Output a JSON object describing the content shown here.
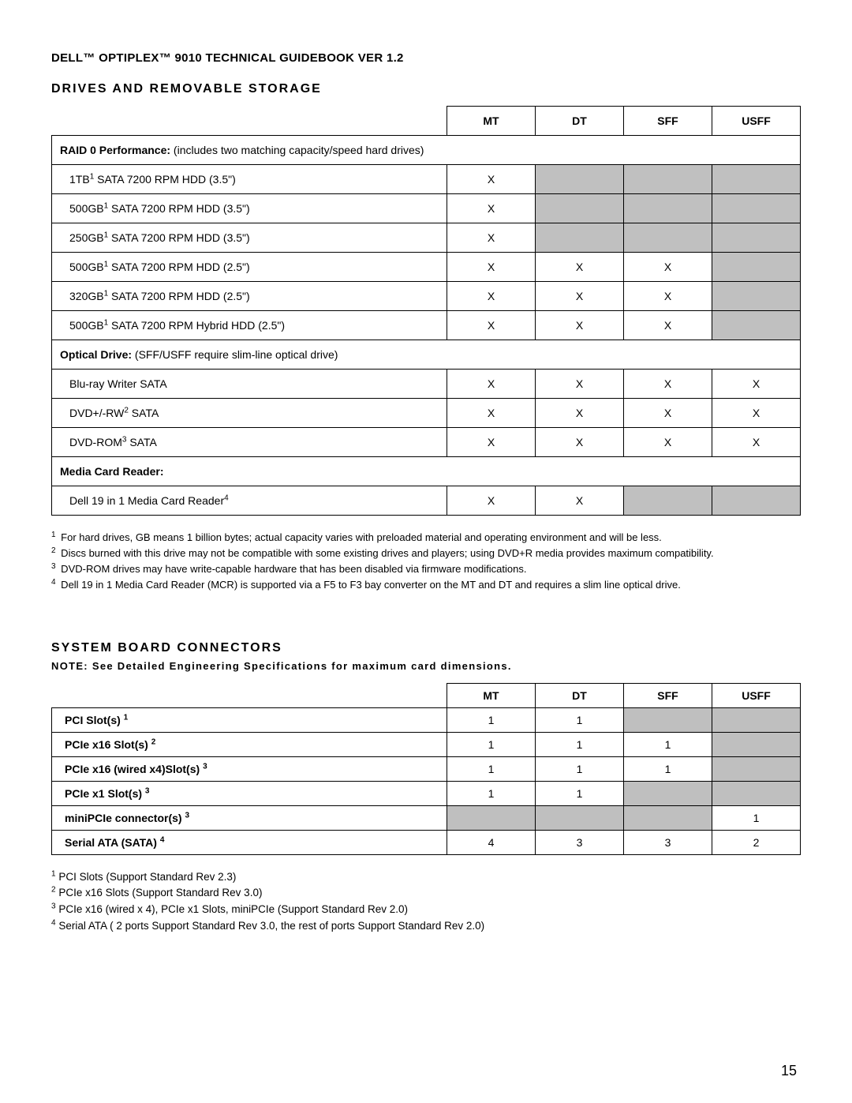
{
  "doc_title": "DELL™ OPTIPLEX™ 9010 TECHNICAL GUIDEBOOK VER 1.2",
  "page_number": "15",
  "section1": {
    "title": "DRIVES AND REMOVABLE STORAGE",
    "columns": [
      "MT",
      "DT",
      "SFF",
      "USFF"
    ],
    "groups": [
      {
        "header_bold": "RAID 0 Performance:",
        "header_rest": "  (includes two matching capacity/speed hard drives)",
        "rows": [
          {
            "label_pre": "1TB",
            "sup": "1",
            "label_post": " SATA 7200 RPM HDD (3.5\")",
            "cells": [
              "X",
              "na",
              "na",
              "na"
            ]
          },
          {
            "label_pre": "500GB",
            "sup": "1",
            "label_post": " SATA 7200 RPM HDD (3.5\")",
            "cells": [
              "X",
              "na",
              "na",
              "na"
            ]
          },
          {
            "label_pre": "250GB",
            "sup": "1",
            "label_post": " SATA 7200 RPM HDD (3.5\")",
            "cells": [
              "X",
              "na",
              "na",
              "na"
            ]
          },
          {
            "label_pre": "500GB",
            "sup": "1",
            "label_post": " SATA 7200 RPM HDD (2.5\")",
            "cells": [
              "X",
              "X",
              "X",
              "na"
            ]
          },
          {
            "label_pre": "320GB",
            "sup": "1",
            "label_post": " SATA 7200 RPM HDD (2.5\")",
            "cells": [
              "X",
              "X",
              "X",
              "na"
            ]
          },
          {
            "label_pre": "500GB",
            "sup": "1",
            "label_post": " SATA 7200 RPM Hybrid HDD (2.5\")",
            "cells": [
              "X",
              "X",
              "X",
              "na"
            ]
          }
        ]
      },
      {
        "header_bold": "Optical Drive:",
        "header_rest": "  (SFF/USFF require slim-line optical drive)",
        "rows": [
          {
            "label_pre": "Blu-ray Writer SATA",
            "sup": "",
            "label_post": "",
            "cells": [
              "X",
              "X",
              "X",
              "X"
            ]
          },
          {
            "label_pre": "DVD+/-RW",
            "sup": "2",
            "label_post": " SATA",
            "cells": [
              "X",
              "X",
              "X",
              "X"
            ]
          },
          {
            "label_pre": "DVD-ROM",
            "sup": "3",
            "label_post": " SATA",
            "cells": [
              "X",
              "X",
              "X",
              "X"
            ]
          }
        ]
      },
      {
        "header_bold": "Media Card Reader:",
        "header_rest": "",
        "rows": [
          {
            "label_pre": "Dell 19 in 1 Media Card Reader",
            "sup": "4",
            "label_post": "",
            "cells": [
              "X",
              "X",
              "na",
              "na"
            ]
          }
        ]
      }
    ],
    "footnotes": [
      {
        "num": "1",
        "text": " For hard drives, GB means 1 billion bytes; actual capacity varies with preloaded material and operating environment and will be less."
      },
      {
        "num": "2",
        "text": " Discs burned with this drive may not be compatible with some existing drives and players; using DVD+R media provides maximum compatibility."
      },
      {
        "num": "3",
        "text": " DVD-ROM drives may have write-capable hardware that has been disabled via firmware modifications."
      },
      {
        "num": "4",
        "text": " Dell 19 in 1 Media Card Reader (MCR) is supported via a F5 to F3 bay converter on the MT and DT and requires a slim line optical drive."
      }
    ]
  },
  "section2": {
    "title": "SYSTEM BOARD CONNECTORS",
    "note": "NOTE: See Detailed Engineering Specifications for maximum card dimensions.",
    "columns": [
      "MT",
      "DT",
      "SFF",
      "USFF"
    ],
    "rows": [
      {
        "label": "PCI Slot(s) ",
        "sup": "1",
        "cells": [
          "1",
          "1",
          "na",
          "na"
        ]
      },
      {
        "label": "PCIe x16 Slot(s) ",
        "sup": "2",
        "cells": [
          "1",
          "1",
          "1",
          "na"
        ]
      },
      {
        "label": "PCIe x16 (wired x4)Slot(s) ",
        "sup": "3",
        "cells": [
          "1",
          "1",
          "1",
          "na"
        ]
      },
      {
        "label": "PCIe x1 Slot(s) ",
        "sup": "3",
        "cells": [
          "1",
          "1",
          "na",
          "na"
        ]
      },
      {
        "label": "miniPCIe connector(s) ",
        "sup": "3",
        "cells": [
          "na",
          "na",
          "na",
          "1"
        ]
      },
      {
        "label": "Serial ATA (SATA) ",
        "sup": "4",
        "cells": [
          "4",
          "3",
          "3",
          "2"
        ]
      }
    ],
    "footnotes": [
      {
        "num": "1",
        "text": " PCI Slots (Support Standard Rev 2.3)"
      },
      {
        "num": "2",
        "text": " PCIe x16 Slots (Support Standard Rev 3.0)"
      },
      {
        "num": "3",
        "text": " PCIe x16 (wired x 4), PCIe x1 Slots, miniPCIe (Support Standard Rev 2.0)"
      },
      {
        "num": "4",
        "text": " Serial ATA ( 2 ports Support Standard Rev 3.0, the rest of ports Support Standard Rev 2.0)"
      }
    ]
  }
}
